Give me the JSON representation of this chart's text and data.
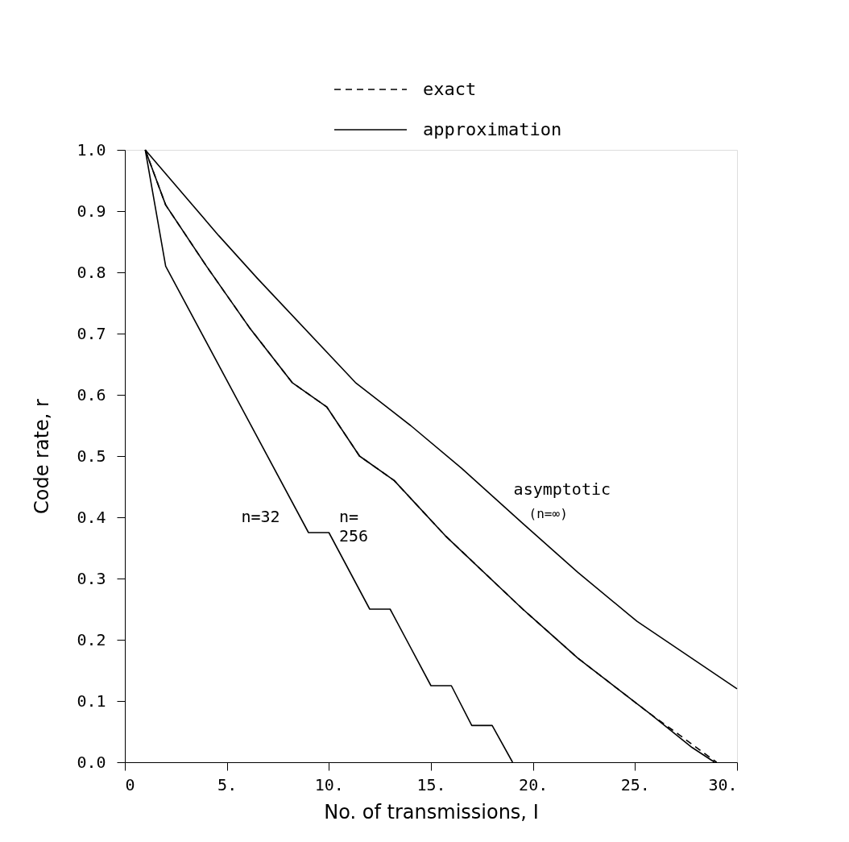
{
  "chart_data": {
    "type": "line",
    "xlabel": "No. of transmissions, I",
    "ylabel": "Code rate, r",
    "xlim": [
      0,
      30
    ],
    "ylim": [
      0,
      1
    ],
    "xticks": [
      0,
      {
        "value": 5,
        "label": "5."
      },
      {
        "value": 10,
        "label": "10."
      },
      {
        "value": 15,
        "label": "15."
      },
      {
        "value": 20,
        "label": "20."
      },
      {
        "value": 25,
        "label": "25."
      },
      {
        "value": 30,
        "label": "30."
      }
    ],
    "yticks": [
      {
        "value": 0,
        "label": "0.0"
      },
      0.1,
      0.2,
      0.3,
      0.4,
      0.5,
      0.6,
      0.7,
      0.8,
      0.9,
      {
        "value": 1,
        "label": "1.0"
      }
    ],
    "grid": false,
    "legend": "top",
    "marker": "none",
    "series": [
      {
        "color": "#000000",
        "line_style": "solid",
        "x": [
          1,
          2,
          9,
          10,
          12,
          13,
          15,
          16,
          17,
          18,
          19
        ],
        "values": [
          1.0,
          0.81,
          0.375,
          0.375,
          0.25,
          0.25,
          0.125,
          0.125,
          0.06,
          0.06,
          0.0
        ]
      },
      {
        "name": "exact",
        "color": "#000000",
        "line_style": "dashed",
        "x": [
          1,
          2,
          4,
          6.1,
          8.2,
          9.9,
          11.5,
          13.2,
          15.7,
          19.5,
          22.2,
          25.7,
          27.2,
          28.3,
          29
        ],
        "values": [
          1.0,
          0.91,
          0.81,
          0.71,
          0.62,
          0.58,
          0.5,
          0.46,
          0.37,
          0.25,
          0.17,
          0.08,
          0.044,
          0.017,
          0.0
        ]
      },
      {
        "name": "approximation",
        "color": "#000000",
        "line_style": "solid",
        "x": [
          1,
          2,
          4,
          6.1,
          8.2,
          9.9,
          11.5,
          13.2,
          15.7,
          19.5,
          22.2,
          25.7,
          27.8,
          28.9
        ],
        "values": [
          1.0,
          0.91,
          0.81,
          0.71,
          0.62,
          0.58,
          0.5,
          0.46,
          0.37,
          0.25,
          0.17,
          0.08,
          0.024,
          0.0
        ]
      },
      {
        "color": "#000000",
        "line_style": "solid",
        "x": [
          1,
          4.6,
          6.5,
          11.3,
          14,
          16.5,
          19.5,
          22.2,
          25.1,
          30
        ],
        "values": [
          1.0,
          0.86,
          0.79,
          0.62,
          0.55,
          0.48,
          0.39,
          0.31,
          0.23,
          0.12
        ]
      }
    ],
    "annotations": [
      "n=32",
      "n=\n256",
      "asymptotic",
      "(n=∞)"
    ]
  }
}
